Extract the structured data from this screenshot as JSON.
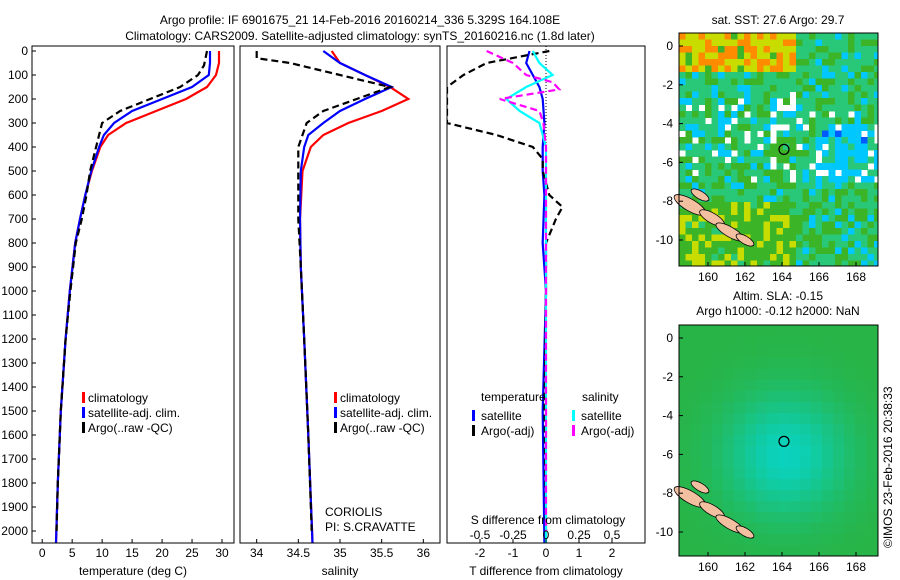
{
  "chart_data": [
    {
      "type": "line",
      "title": "Argo profile: IF 6901675_21 14-Feb-2016 20160214_336 5.329S 164.108E",
      "subtitle": "Climatology: CARS2009. Satellite-adjusted climatology: synTS_20160216.nc (1.8d later)",
      "xlabel": "temperature (deg C)",
      "xlim": [
        -1.7,
        32
      ],
      "ylim": [
        0,
        2050
      ],
      "xticks": [
        0,
        5,
        10,
        15,
        20,
        25,
        30
      ],
      "yticks": [
        0,
        100,
        200,
        300,
        400,
        500,
        600,
        700,
        800,
        900,
        1000,
        1100,
        1200,
        1300,
        1400,
        1500,
        1600,
        1700,
        1800,
        1900,
        2000
      ],
      "legend": [
        "climatology",
        "satellite-adj. clim.",
        "Argo(..raw -QC)"
      ],
      "legend_placement": "lower-right",
      "series": [
        {
          "name": "climatology",
          "color": "#ff0000",
          "depth": [
            0,
            50,
            100,
            150,
            200,
            250,
            300,
            350,
            400,
            500,
            600,
            700,
            800,
            1000,
            1200,
            1500,
            1800,
            2050
          ],
          "values": [
            29.5,
            29.5,
            29,
            27.5,
            24,
            19,
            14,
            11,
            9.7,
            8.3,
            7.2,
            6.3,
            5.5,
            4.6,
            3.9,
            3.1,
            2.6,
            2.3
          ]
        },
        {
          "name": "satellite-adj. clim.",
          "color": "#0000ff",
          "depth": [
            0,
            50,
            100,
            150,
            200,
            250,
            300,
            350,
            400,
            500,
            600,
            700,
            800,
            1000,
            1200,
            1500,
            1800,
            2050
          ],
          "values": [
            28,
            28,
            27.8,
            25,
            20,
            15,
            12,
            10.3,
            9.5,
            8.2,
            7.2,
            6.3,
            5.5,
            4.6,
            3.9,
            3.1,
            2.6,
            2.3
          ]
        },
        {
          "name": "Argo(..raw -QC)",
          "color": "#000000",
          "dash": true,
          "depth": [
            0,
            60,
            100,
            150,
            200,
            250,
            300,
            350,
            400,
            500,
            600,
            700,
            800,
            1000,
            1200,
            1500,
            1800,
            2000
          ],
          "values": [
            27.5,
            27,
            26,
            23,
            18,
            13,
            10,
            9.5,
            9,
            8,
            7.4,
            6.6,
            5.6,
            4.7,
            3.9,
            3.1,
            2.6,
            2.4
          ]
        }
      ]
    },
    {
      "type": "line",
      "xlabel": "salinity",
      "xlim": [
        33.8,
        36.2
      ],
      "ylim": [
        0,
        2050
      ],
      "xticks": [
        34,
        34.5,
        35,
        35.5,
        36
      ],
      "legend": [
        "climatology",
        "satellite-adj. clim.",
        "Argo(..raw -QC)"
      ],
      "annotation": [
        "CORIOLIS",
        "PI: S.CRAVATTE"
      ],
      "series": [
        {
          "name": "climatology",
          "color": "#ff0000",
          "depth": [
            0,
            50,
            100,
            150,
            200,
            250,
            300,
            350,
            400,
            500,
            700,
            900,
            1200,
            1600,
            2050
          ],
          "values": [
            34.9,
            35.0,
            35.3,
            35.6,
            35.82,
            35.5,
            35.1,
            34.8,
            34.65,
            34.55,
            34.52,
            34.53,
            34.57,
            34.62,
            34.67
          ]
        },
        {
          "name": "satellite-adj. clim.",
          "color": "#0000ff",
          "depth": [
            0,
            50,
            100,
            150,
            200,
            250,
            300,
            350,
            400,
            500,
            700,
            900,
            1200,
            1600,
            2050
          ],
          "values": [
            34.8,
            35.0,
            35.3,
            35.62,
            35.3,
            35.0,
            34.8,
            34.62,
            34.57,
            34.53,
            34.52,
            34.53,
            34.57,
            34.62,
            34.67
          ]
        },
        {
          "name": "Argo(..raw -QC)",
          "color": "#000000",
          "dash": true,
          "depth": [
            0,
            30,
            50,
            100,
            150,
            200,
            250,
            300,
            400,
            500,
            700,
            900,
            1200,
            1600,
            2000
          ],
          "values": [
            34.0,
            34.0,
            34.4,
            35.0,
            35.6,
            35.2,
            34.8,
            34.6,
            34.5,
            34.5,
            34.5,
            34.53,
            34.57,
            34.62,
            34.66
          ]
        }
      ]
    },
    {
      "type": "line",
      "xlabel": "T difference from climatology",
      "x2label": "S difference from climatology",
      "xlim": [
        -3,
        3
      ],
      "x2lim": [
        -0.75,
        0.75
      ],
      "ylim": [
        0,
        2050
      ],
      "xticks": [
        -2,
        -1,
        0,
        1,
        2
      ],
      "x2ticks": [
        "-0.5",
        "-0.25",
        "0",
        "0.25",
        "0.5"
      ],
      "legend": {
        "temperature": "temperature",
        "salinity": "salinity",
        "t_sat": "satellite",
        "t_argo": "Argo(-adj)",
        "s_sat": "satellite",
        "s_argo": "Argo(-adj)"
      },
      "series": [
        {
          "name": "T satellite",
          "color": "#0000ff",
          "depth": [
            0,
            50,
            100,
            150,
            200,
            300,
            400,
            500,
            600,
            800,
            1000,
            1500,
            2050
          ],
          "values": [
            -0.5,
            -0.6,
            -0.4,
            -0.2,
            -0.1,
            -0.05,
            -0.1,
            -0.1,
            -0.05,
            -0.1,
            0,
            -0.1,
            -0.05
          ]
        },
        {
          "name": "T Argo(-adj)",
          "color": "#000000",
          "dash": true,
          "depth": [
            0,
            50,
            100,
            150,
            250,
            300,
            350,
            400,
            450,
            500,
            600,
            650,
            700,
            800,
            1000,
            1500,
            2000
          ],
          "values": [
            0.1,
            -1.8,
            -2.5,
            -3,
            -3,
            -3,
            -1.5,
            -0.4,
            -0.1,
            -0.1,
            0.1,
            0.5,
            0.3,
            0,
            0,
            -0.05,
            0
          ]
        },
        {
          "name": "S satellite",
          "color": "#00ffff",
          "depth": [
            0,
            50,
            100,
            150,
            200,
            250,
            300,
            400,
            500,
            700,
            1000,
            1500,
            2050
          ],
          "values": [
            -0.1,
            -0.05,
            0.05,
            -0.15,
            -0.3,
            -0.2,
            -0.05,
            0,
            0,
            0,
            0,
            0,
            0
          ]
        },
        {
          "name": "S Argo(-adj)",
          "color": "#ff00ff",
          "dash": true,
          "depth": [
            0,
            50,
            100,
            130,
            160,
            200,
            250,
            300,
            400,
            500,
            1000,
            2000
          ],
          "values": [
            -0.45,
            -0.25,
            -0.15,
            0.05,
            0.1,
            -0.35,
            -0.05,
            -0.02,
            0,
            0,
            0,
            0
          ]
        }
      ]
    },
    {
      "type": "heatmap",
      "title": "sat. SST: 27.6 Argo: 29.7",
      "xticks": [
        160,
        162,
        164,
        166,
        168
      ],
      "yticks": [
        0,
        -2,
        -4,
        -6,
        -8,
        -10
      ],
      "argo_position": [
        164.108,
        -5.329
      ]
    },
    {
      "type": "heatmap",
      "title": "Altim. SLA: -0.15",
      "subtitle": "Argo h1000: -0.12 h2000: NaN",
      "xticks": [
        160,
        162,
        164,
        166,
        168
      ],
      "yticks": [
        0,
        -2,
        -4,
        -6,
        -8,
        -10
      ],
      "argo_position": [
        164.108,
        -5.329
      ]
    }
  ],
  "credit": "©IMOS 23-Feb-2016 20:38:33"
}
